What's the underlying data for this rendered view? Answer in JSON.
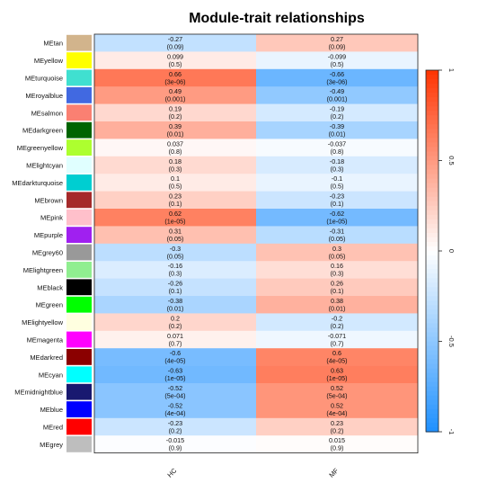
{
  "chart_data": {
    "type": "heatmap",
    "title": "Module-trait relationships",
    "columns": [
      "HC",
      "MF"
    ],
    "rows": [
      {
        "name": "MEtan",
        "color": "#D2B48C",
        "cor": [
          -0.27,
          0.27
        ],
        "cor_label": [
          "-0.27",
          "0.27"
        ],
        "p": [
          "(0.09)",
          "(0.09)"
        ]
      },
      {
        "name": "MEyellow",
        "color": "#FFFF00",
        "cor": [
          0.099,
          -0.099
        ],
        "cor_label": [
          "0.099",
          "-0.099"
        ],
        "p": [
          "(0.5)",
          "(0.5)"
        ]
      },
      {
        "name": "MEturquoise",
        "color": "#40E0D0",
        "cor": [
          0.66,
          -0.66
        ],
        "cor_label": [
          "0.66",
          "-0.66"
        ],
        "p": [
          "(3e-06)",
          "(3e-06)"
        ]
      },
      {
        "name": "MEroyalblue",
        "color": "#4169E1",
        "cor": [
          0.49,
          -0.49
        ],
        "cor_label": [
          "0.49",
          "-0.49"
        ],
        "p": [
          "(0.001)",
          "(0.001)"
        ]
      },
      {
        "name": "MEsalmon",
        "color": "#FA8072",
        "cor": [
          0.19,
          -0.19
        ],
        "cor_label": [
          "0.19",
          "-0.19"
        ],
        "p": [
          "(0.2)",
          "(0.2)"
        ]
      },
      {
        "name": "MEdarkgreen",
        "color": "#006400",
        "cor": [
          0.39,
          -0.39
        ],
        "cor_label": [
          "0.39",
          "-0.39"
        ],
        "p": [
          "(0.01)",
          "(0.01)"
        ]
      },
      {
        "name": "MEgreenyellow",
        "color": "#ADFF2F",
        "cor": [
          0.037,
          -0.037
        ],
        "cor_label": [
          "0.037",
          "-0.037"
        ],
        "p": [
          "(0.8)",
          "(0.8)"
        ]
      },
      {
        "name": "MElightcyan",
        "color": "#E0FFFF",
        "cor": [
          0.18,
          -0.18
        ],
        "cor_label": [
          "0.18",
          "-0.18"
        ],
        "p": [
          "(0.3)",
          "(0.3)"
        ]
      },
      {
        "name": "MEdarkturquoise",
        "color": "#00CED1",
        "cor": [
          0.1,
          -0.1
        ],
        "cor_label": [
          "0.1",
          "-0.1"
        ],
        "p": [
          "(0.5)",
          "(0.5)"
        ]
      },
      {
        "name": "MEbrown",
        "color": "#A52A2A",
        "cor": [
          0.23,
          -0.23
        ],
        "cor_label": [
          "0.23",
          "-0.23"
        ],
        "p": [
          "(0.1)",
          "(0.1)"
        ]
      },
      {
        "name": "MEpink",
        "color": "#FFC0CB",
        "cor": [
          0.62,
          -0.62
        ],
        "cor_label": [
          "0.62",
          "-0.62"
        ],
        "p": [
          "(1e-05)",
          "(1e-05)"
        ]
      },
      {
        "name": "MEpurple",
        "color": "#A020F0",
        "cor": [
          0.31,
          -0.31
        ],
        "cor_label": [
          "0.31",
          "-0.31"
        ],
        "p": [
          "(0.05)",
          "(0.05)"
        ]
      },
      {
        "name": "MEgrey60",
        "color": "#999999",
        "cor": [
          -0.3,
          0.3
        ],
        "cor_label": [
          "-0.3",
          "0.3"
        ],
        "p": [
          "(0.05)",
          "(0.05)"
        ]
      },
      {
        "name": "MElightgreen",
        "color": "#90EE90",
        "cor": [
          -0.16,
          0.16
        ],
        "cor_label": [
          "-0.16",
          "0.16"
        ],
        "p": [
          "(0.3)",
          "(0.3)"
        ]
      },
      {
        "name": "MEblack",
        "color": "#000000",
        "cor": [
          -0.26,
          0.26
        ],
        "cor_label": [
          "-0.26",
          "0.26"
        ],
        "p": [
          "(0.1)",
          "(0.1)"
        ]
      },
      {
        "name": "MEgreen",
        "color": "#00FF00",
        "cor": [
          -0.38,
          0.38
        ],
        "cor_label": [
          "-0.38",
          "0.38"
        ],
        "p": [
          "(0.01)",
          "(0.01)"
        ]
      },
      {
        "name": "MElightyellow",
        "color": "#FFFFE0",
        "cor": [
          0.2,
          -0.2
        ],
        "cor_label": [
          "0.2",
          "-0.2"
        ],
        "p": [
          "(0.2)",
          "(0.2)"
        ]
      },
      {
        "name": "MEmagenta",
        "color": "#FF00FF",
        "cor": [
          0.071,
          -0.071
        ],
        "cor_label": [
          "0.071",
          "-0.071"
        ],
        "p": [
          "(0.7)",
          "(0.7)"
        ]
      },
      {
        "name": "MEdarkred",
        "color": "#8B0000",
        "cor": [
          -0.6,
          0.6
        ],
        "cor_label": [
          "-0.6",
          "0.6"
        ],
        "p": [
          "(4e-05)",
          "(4e-05)"
        ]
      },
      {
        "name": "MEcyan",
        "color": "#00FFFF",
        "cor": [
          -0.63,
          0.63
        ],
        "cor_label": [
          "-0.63",
          "0.63"
        ],
        "p": [
          "(1e-05)",
          "(1e-05)"
        ]
      },
      {
        "name": "MEmidnightblue",
        "color": "#191970",
        "cor": [
          -0.52,
          0.52
        ],
        "cor_label": [
          "-0.52",
          "0.52"
        ],
        "p": [
          "(5e-04)",
          "(5e-04)"
        ]
      },
      {
        "name": "MEblue",
        "color": "#0000FF",
        "cor": [
          -0.52,
          0.52
        ],
        "cor_label": [
          "-0.52",
          "0.52"
        ],
        "p": [
          "(4e-04)",
          "(4e-04)"
        ]
      },
      {
        "name": "MEred",
        "color": "#FF0000",
        "cor": [
          -0.23,
          0.23
        ],
        "cor_label": [
          "-0.23",
          "0.23"
        ],
        "p": [
          "(0.2)",
          "(0.2)"
        ]
      },
      {
        "name": "MEgrey",
        "color": "#BEBEBE",
        "cor": [
          -0.015,
          0.015
        ],
        "cor_label": [
          "-0.015",
          "0.015"
        ],
        "p": [
          "(0.9)",
          "(0.9)"
        ]
      }
    ],
    "colorbar": {
      "ticks": [
        -1,
        -0.5,
        0,
        0.5,
        1
      ],
      "tick_labels": [
        "-1",
        "-0.5",
        "0",
        "0.5",
        "1"
      ],
      "low_color": "#1E90FF",
      "mid_color": "#FFFFFF",
      "high_color": "#FF3300"
    }
  }
}
